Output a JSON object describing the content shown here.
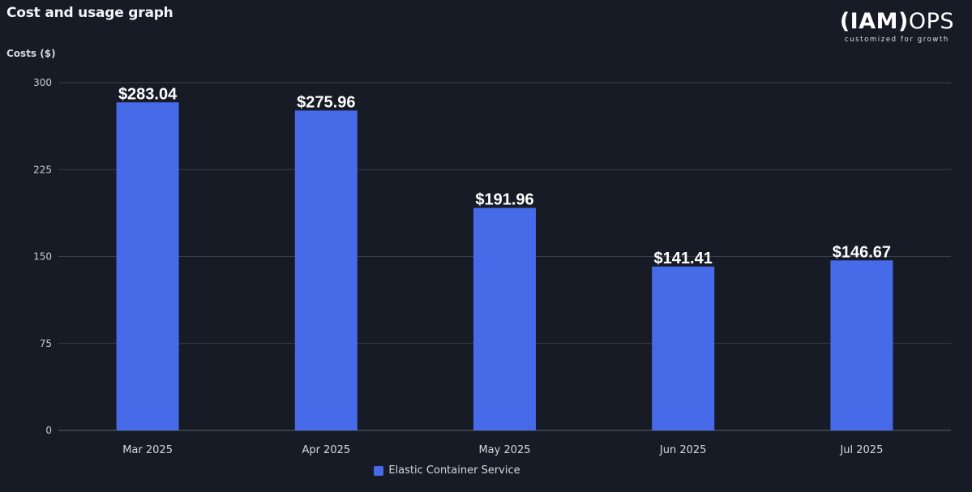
{
  "header": {
    "title": "Cost and usage graph",
    "y_axis_label": "Costs ($)"
  },
  "logo": {
    "bold_text": "(IAM)",
    "light_text": "OPS",
    "tagline": "customized for growth"
  },
  "colors": {
    "background": "#161b26",
    "bar": "#476be8",
    "grid": "#3a404b"
  },
  "chart_data": {
    "type": "bar",
    "title": "Cost and usage graph",
    "xlabel": "",
    "ylabel": "Costs ($)",
    "categories": [
      "Mar 2025",
      "Apr 2025",
      "May 2025",
      "Jun 2025",
      "Jul 2025"
    ],
    "series": [
      {
        "name": "Elastic Container Service",
        "values": [
          283.04,
          275.96,
          191.96,
          141.41,
          146.67
        ],
        "labels": [
          "$283.04",
          "$275.96",
          "$191.96",
          "$141.41",
          "$146.67"
        ]
      }
    ],
    "ylim": [
      0,
      300
    ],
    "yticks": [
      0,
      75,
      150,
      225,
      300
    ],
    "grid": true,
    "legend_position": "bottom-center"
  }
}
